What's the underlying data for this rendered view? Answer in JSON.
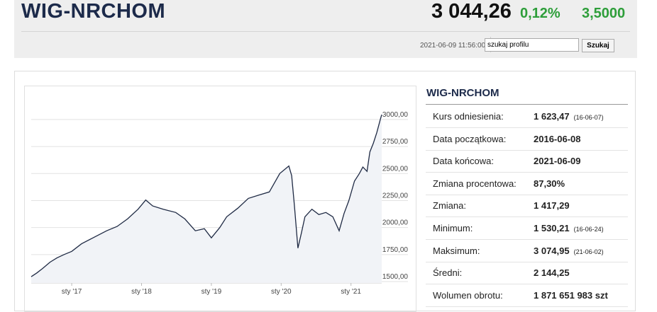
{
  "header": {
    "title": "WIG-NRCHOM",
    "price": "3 044,26",
    "change_pct": "0,12%",
    "change_abs": "3,5000",
    "timestamp": "2021-06-09 11:56:00",
    "search_placeholder": "szukaj profilu",
    "search_button": "Szukaj"
  },
  "chart_data": {
    "type": "line",
    "x": [
      2016.42,
      2016.5,
      2016.58,
      2016.69,
      2016.79,
      2016.89,
      2017.0,
      2017.14,
      2017.29,
      2017.5,
      2017.65,
      2017.8,
      2017.95,
      2018.06,
      2018.16,
      2018.31,
      2018.49,
      2018.62,
      2018.77,
      2018.9,
      2019.0,
      2019.12,
      2019.22,
      2019.38,
      2019.53,
      2019.68,
      2019.83,
      2019.98,
      2020.11,
      2020.15,
      2020.19,
      2020.24,
      2020.29,
      2020.34,
      2020.44,
      2020.54,
      2020.64,
      2020.74,
      2020.83,
      2020.9,
      2020.97,
      2021.05,
      2021.12,
      2021.17,
      2021.23,
      2021.27,
      2021.32,
      2021.37,
      2021.42,
      2021.44
    ],
    "series": [
      {
        "name": "WIG-NRCHOM",
        "color": "#1f2a44",
        "values": [
          1545,
          1580,
          1620,
          1680,
          1720,
          1750,
          1780,
          1850,
          1900,
          1970,
          2010,
          2080,
          2170,
          2255,
          2200,
          2170,
          2140,
          2080,
          1970,
          1990,
          1905,
          2000,
          2100,
          2180,
          2270,
          2300,
          2330,
          2500,
          2570,
          2480,
          2200,
          1810,
          1950,
          2100,
          2170,
          2120,
          2140,
          2100,
          1970,
          2130,
          2250,
          2430,
          2500,
          2560,
          2520,
          2700,
          2780,
          2880,
          3000,
          3045
        ]
      }
    ],
    "xlim": [
      2016.42,
      2021.44
    ],
    "xticks": [
      {
        "value": 2017,
        "label": "sty '17"
      },
      {
        "value": 2018,
        "label": "sty '18"
      },
      {
        "value": 2019,
        "label": "sty '19"
      },
      {
        "value": 2020,
        "label": "sty '20"
      },
      {
        "value": 2021,
        "label": "sty '21"
      }
    ],
    "ylim": [
      1487,
      3268
    ],
    "yticks": [
      {
        "value": 1500,
        "label": "1500,00"
      },
      {
        "value": 1750,
        "label": "1750,00"
      },
      {
        "value": 2000,
        "label": "2000,00"
      },
      {
        "value": 2250,
        "label": "2250,00"
      },
      {
        "value": 2500,
        "label": "2500,00"
      },
      {
        "value": 2750,
        "label": "2750,00"
      },
      {
        "value": 3000,
        "label": "3000,00"
      }
    ],
    "grid": true
  },
  "table": {
    "title": "WIG-NRCHOM",
    "rows": [
      {
        "label": "Kurs odniesienia:",
        "value": "1 623,47",
        "note": "(16-06-07)"
      },
      {
        "label": "Data początkowa:",
        "value": "2016-06-08"
      },
      {
        "label": "Data końcowa:",
        "value": "2021-06-09"
      },
      {
        "label": "Zmiana procentowa:",
        "value": "87,30%"
      },
      {
        "label": "Zmiana:",
        "value": "1 417,29"
      },
      {
        "label": "Minimum:",
        "value": "1 530,21",
        "note": "(16-06-24)"
      },
      {
        "label": "Maksimum:",
        "value": "3 074,95",
        "note": "(21-06-02)"
      },
      {
        "label": "Średni:",
        "value": "2 144,25"
      },
      {
        "label": "Wolumen obrotu:",
        "value": "1 871 651 983 szt"
      }
    ]
  }
}
